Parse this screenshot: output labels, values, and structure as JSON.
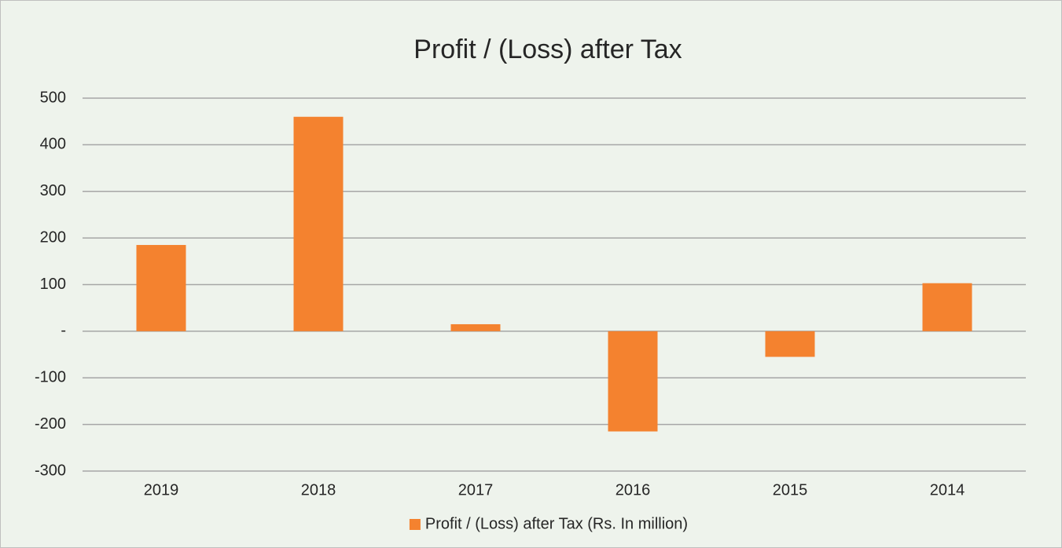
{
  "chart_data": {
    "type": "bar",
    "title": "Profit / (Loss) after Tax",
    "categories": [
      "2019",
      "2018",
      "2017",
      "2016",
      "2015",
      "2014"
    ],
    "series": [
      {
        "name": "Profit / (Loss) after Tax (Rs. In million)",
        "color": "#f4822f",
        "values": [
          185,
          460,
          15,
          -215,
          -55,
          103
        ]
      }
    ],
    "ylim": [
      -300,
      500
    ],
    "yticks": [
      -300,
      -200,
      -100,
      {
        "value": 0,
        "label": "-"
      },
      100,
      200,
      300,
      400,
      500
    ],
    "grid": true,
    "legend": "bottom"
  }
}
